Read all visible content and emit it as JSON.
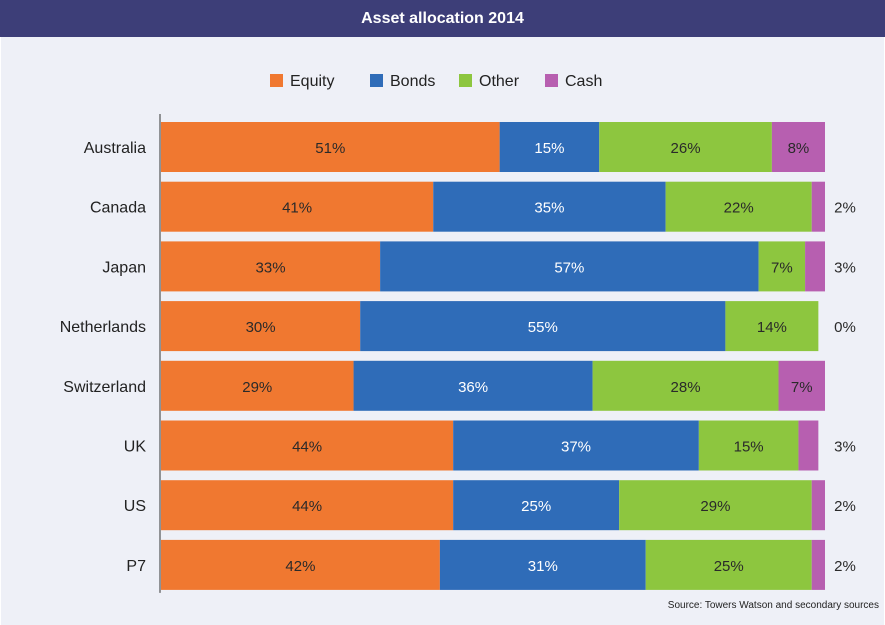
{
  "header": {
    "title": "Asset allocation 2014"
  },
  "source": "Source: Towers Watson and secondary sources",
  "colors": {
    "title_bar": "#3d3e78",
    "plot_background": "#eef0f7",
    "equity": "#f07830",
    "bonds": "#2f6cb8",
    "other": "#8dc63f",
    "cash": "#b75fb0"
  },
  "chart_data": {
    "type": "bar",
    "orientation": "horizontal",
    "stacked": true,
    "title": "Asset allocation 2014",
    "xlim": [
      0,
      100
    ],
    "grid": false,
    "legend_position": "top",
    "categories": [
      "Australia",
      "Canada",
      "Japan",
      "Netherlands",
      "Switzerland",
      "UK",
      "US",
      "P7"
    ],
    "series": [
      {
        "name": "Equity",
        "color": "#f07830",
        "values": [
          51,
          41,
          33,
          30,
          29,
          44,
          44,
          42
        ],
        "labels": [
          "51%",
          "41%",
          "33%",
          "30%",
          "29%",
          "44%",
          "44%",
          "42%"
        ]
      },
      {
        "name": "Bonds",
        "color": "#2f6cb8",
        "values": [
          15,
          35,
          57,
          55,
          36,
          37,
          25,
          31
        ],
        "labels": [
          "15%",
          "35%",
          "57%",
          "55%",
          "36%",
          "37%",
          "25%",
          "31%"
        ]
      },
      {
        "name": "Other",
        "color": "#8dc63f",
        "values": [
          26,
          22,
          7,
          14,
          28,
          15,
          29,
          25
        ],
        "labels": [
          "26%",
          "22%",
          "7%",
          "14%",
          "28%",
          "15%",
          "29%",
          "25%"
        ]
      },
      {
        "name": "Cash",
        "color": "#b75fb0",
        "values": [
          8,
          2,
          3,
          0,
          7,
          3,
          2,
          2
        ],
        "labels": [
          "8%",
          "2%",
          "3%",
          "0%",
          "7%",
          "3%",
          "2%",
          "2%"
        ]
      }
    ]
  }
}
